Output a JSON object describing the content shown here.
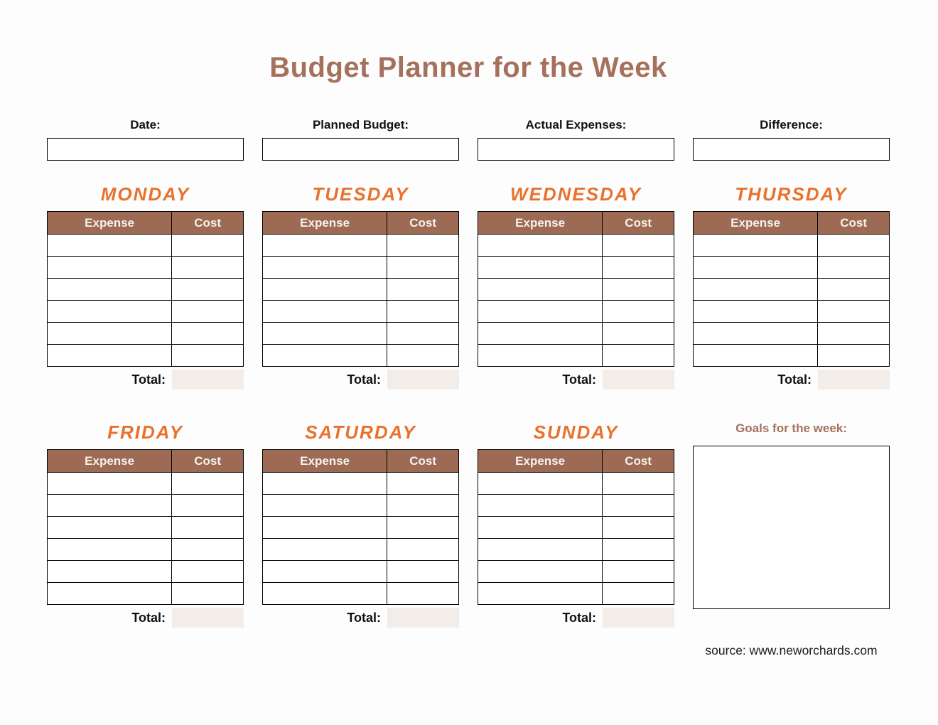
{
  "title": "Budget Planner for the Week",
  "header_fields": [
    {
      "id": "date",
      "label": "Date:"
    },
    {
      "id": "planned-budget",
      "label": "Planned Budget:"
    },
    {
      "id": "actual-expenses",
      "label": "Actual Expenses:"
    },
    {
      "id": "difference",
      "label": "Difference:"
    }
  ],
  "days": [
    {
      "name": "MONDAY"
    },
    {
      "name": "TUESDAY"
    },
    {
      "name": "WEDNESDAY"
    },
    {
      "name": "THURSDAY"
    },
    {
      "name": "FRIDAY"
    },
    {
      "name": "SATURDAY"
    },
    {
      "name": "SUNDAY"
    }
  ],
  "day_table": {
    "columns": [
      "Expense",
      "Cost"
    ],
    "rows_per_day": 6,
    "total_label": "Total:"
  },
  "goals": {
    "label": "Goals for the week:"
  },
  "source": "source: www.neworchards.com",
  "colors": {
    "title_brown": "#A5705C",
    "day_heading_orange": "#E8722D",
    "table_header_brown": "#9D6A53",
    "total_box_beige": "#F2EDE9",
    "border_black": "#000000"
  }
}
